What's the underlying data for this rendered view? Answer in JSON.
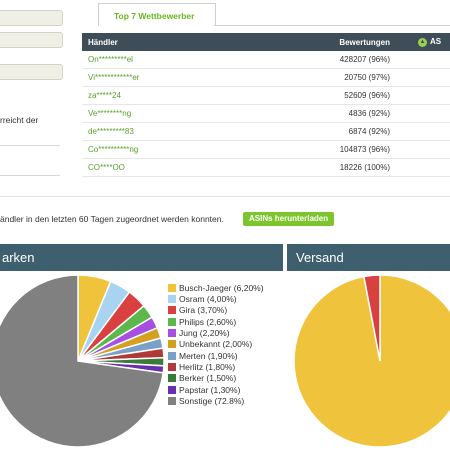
{
  "sidebar": {
    "text_line": "rreicht der"
  },
  "competitors": {
    "tab_title": "Top 7 Wettbewerber",
    "headers": {
      "dealer": "Händler",
      "ratings": "Bewertungen",
      "asin": "AS"
    },
    "rows": [
      {
        "name": "On*********el",
        "ratings": "428207 (96%)"
      },
      {
        "name": "Vi************er",
        "ratings": "20750 (97%)"
      },
      {
        "name": "za*****24",
        "ratings": "52609 (96%)"
      },
      {
        "name": "Ve********ng",
        "ratings": "4836 (92%)"
      },
      {
        "name": "de*********83",
        "ratings": "6874 (92%)"
      },
      {
        "name": "Co**********ng",
        "ratings": "104873 (96%)"
      },
      {
        "name": "CO****OO",
        "ratings": "18226 (100%)"
      }
    ]
  },
  "info": {
    "text": "ändler in den letzten 60 Tagen zugeordnet werden konnten.",
    "download_button": "ASINs herunterladen"
  },
  "panels": {
    "brands_title": "arken",
    "shipping_title": "Versand"
  },
  "colors": {
    "header_bg": "#3f4d58",
    "panel_bg": "#3d5f6e",
    "accent_green": "#7cc52c"
  },
  "chart_data": [
    {
      "type": "pie",
      "title": "Marken",
      "labels": [
        "Busch-Jaeger (6,20%)",
        "Osram (4,00%)",
        "Gira (3,70%)",
        "Philips (2,60%)",
        "Jung (2,20%)",
        "Unbekannt (2,00%)",
        "Merten (1,90%)",
        "Herlitz (1,80%)",
        "Berker (1,50%)",
        "Papstar (1,30%)",
        "Sonstige (72.8%)"
      ],
      "values": [
        6.2,
        4.0,
        3.7,
        2.6,
        2.2,
        2.0,
        1.9,
        1.8,
        1.5,
        1.3,
        72.8
      ],
      "colors": [
        "#f0c33c",
        "#a8d4f2",
        "#d94040",
        "#5cb84a",
        "#a64fe0",
        "#d4a020",
        "#7aa0c8",
        "#b03a3a",
        "#3a7a3a",
        "#6a2fb0",
        "#808080"
      ],
      "legend": "right"
    },
    {
      "type": "pie",
      "title": "Versand",
      "values": [
        97,
        3
      ],
      "colors": [
        "#f0c33c",
        "#d94040"
      ]
    }
  ]
}
